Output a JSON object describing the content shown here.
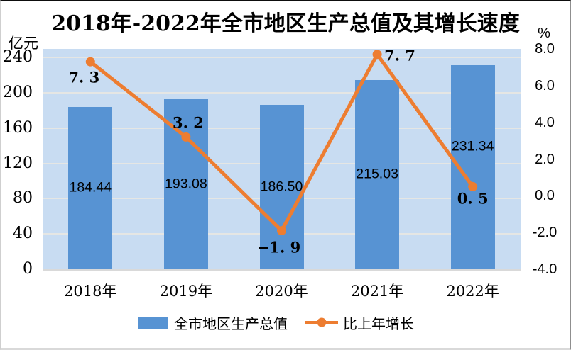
{
  "title": "2018年-2022年全市地区生产总值及其增长速度",
  "left_axis": {
    "unit": "亿元",
    "ticks": [
      "240",
      "200",
      "160",
      "120",
      "80",
      "40",
      "0"
    ],
    "range": [
      0,
      250
    ]
  },
  "right_axis": {
    "unit": "%",
    "ticks": [
      "8.0",
      "6.0",
      "4.0",
      "2.0",
      "0.0",
      "-2.0",
      "-4.0"
    ],
    "range": [
      -4.0,
      8.0
    ]
  },
  "legend": {
    "bar_label": "全市地区生产总值",
    "line_label": "比上年增长"
  },
  "colors": {
    "bar": "#5793d3",
    "line": "#ed7d31",
    "plot_bg": "#c8dcf2",
    "gridline": "#e5e6e4",
    "axis_line": "#d9d9d9",
    "text": "#000000"
  },
  "chart_data": {
    "type": "combo",
    "categories": [
      "2018年",
      "2019年",
      "2020年",
      "2021年",
      "2022年"
    ],
    "series": [
      {
        "name": "全市地区生产总值",
        "type": "bar",
        "axis": "left",
        "values": [
          184.44,
          193.08,
          186.5,
          215.03,
          231.34
        ],
        "labels": [
          "184.44",
          "193.08",
          "186.50",
          "215.03",
          "231.34"
        ],
        "label_dy": [
          0,
          0,
          0,
          0,
          -29
        ],
        "color": "#5793d3"
      },
      {
        "name": "比上年增长",
        "type": "line",
        "axis": "right",
        "values": [
          7.3,
          3.2,
          -1.9,
          7.7,
          0.5
        ],
        "labels": [
          "7. 3",
          "3. 2",
          "−1. 9",
          "7. 7",
          "0. 5"
        ],
        "label_offsets": [
          [
            -9,
            22
          ],
          [
            3,
            -20
          ],
          [
            -4,
            23
          ],
          [
            32,
            1
          ],
          [
            0,
            17
          ]
        ],
        "color": "#ed7d31"
      }
    ],
    "title": "2018年-2022年全市地区生产总值及其增长速度",
    "xlabel": "",
    "ylabel_left": "亿元",
    "ylabel_right": "%",
    "left_ylim": [
      0,
      250
    ],
    "right_ylim": [
      -4.0,
      8.0
    ],
    "grid": "horizontal, at left-axis intervals of 40",
    "legend_position": "bottom-center"
  }
}
